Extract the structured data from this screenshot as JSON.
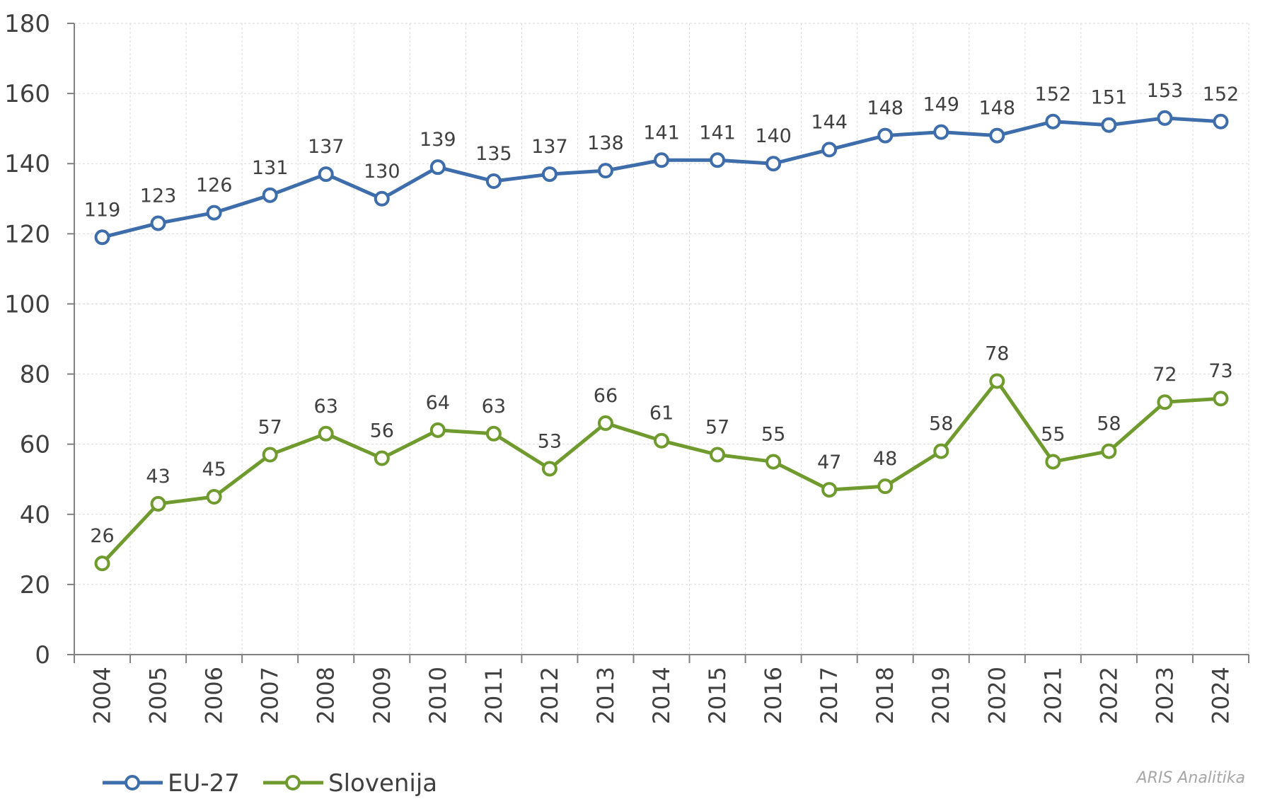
{
  "chart_data": {
    "type": "line",
    "title": "",
    "xlabel": "",
    "ylabel": "",
    "ylim": [
      0,
      180
    ],
    "yticks": [
      0,
      20,
      40,
      60,
      80,
      100,
      120,
      140,
      160,
      180
    ],
    "grid": true,
    "legend_position": "bottom-left",
    "x": [
      "2004",
      "2005",
      "2006",
      "2007",
      "2008",
      "2009",
      "2010",
      "2011",
      "2012",
      "2013",
      "2014",
      "2015",
      "2016",
      "2017",
      "2018",
      "2019",
      "2020",
      "2021",
      "2022",
      "2023",
      "2024"
    ],
    "series": [
      {
        "name": "EU-27",
        "color": "#3d6daa",
        "values": [
          119,
          123,
          126,
          131,
          137,
          130,
          139,
          135,
          137,
          138,
          141,
          141,
          140,
          144,
          148,
          149,
          148,
          152,
          151,
          153,
          152
        ]
      },
      {
        "name": "Slovenija",
        "color": "#6f9a2d",
        "values": [
          26,
          43,
          45,
          57,
          63,
          56,
          64,
          63,
          53,
          66,
          61,
          57,
          55,
          47,
          48,
          58,
          78,
          55,
          58,
          72,
          73
        ]
      }
    ]
  },
  "credit": "ARIS Analitika"
}
